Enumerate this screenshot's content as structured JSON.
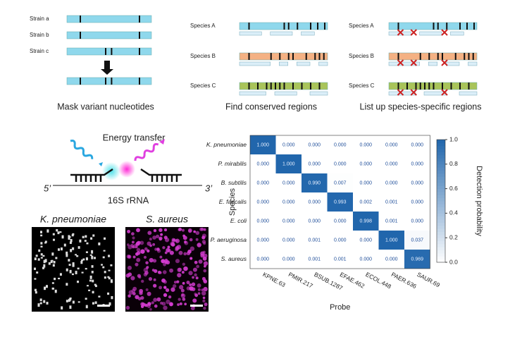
{
  "panels": {
    "mask": {
      "strains": [
        "Strain a",
        "Strain b",
        "Strain c"
      ],
      "caption": "Mask variant nucleotides"
    },
    "conserved": {
      "species": [
        "Species A",
        "Species B",
        "Species C"
      ],
      "caption": "Find conserved regions"
    },
    "specific": {
      "species": [
        "Species A",
        "Species B",
        "Species C"
      ],
      "caption": "List up species-specific regions"
    },
    "fret": {
      "title": "Energy transfer",
      "left_end": "5’",
      "right_end": "3’",
      "label": "16S rRNA"
    },
    "images": [
      "K. pneumoniae",
      "S. aureus"
    ]
  },
  "chart_data": {
    "type": "heatmap",
    "rows": [
      "K. pneumoniae",
      "P. mirabilis",
      "B. subtilis",
      "E. faecalis",
      "E. coli",
      "P. aeruginosa",
      "S. aureus"
    ],
    "categories": [
      "KPNE.63",
      "PMIR.217",
      "BSUB.1287",
      "EFAE.462",
      "ECOL.448",
      "PAER.636",
      "SAUR.69"
    ],
    "values": [
      [
        1,
        0,
        0,
        0,
        0,
        0,
        0
      ],
      [
        0,
        1,
        0,
        0,
        0,
        0,
        0
      ],
      [
        0,
        0,
        0.99,
        0.007,
        0,
        0,
        0
      ],
      [
        0,
        0,
        0,
        0.993,
        0.002,
        0.001,
        0
      ],
      [
        0,
        0,
        0,
        0,
        0.998,
        0.001,
        0
      ],
      [
        0,
        0,
        0.001,
        0,
        0,
        1,
        0.037
      ],
      [
        0,
        0,
        0.001,
        0.001,
        0,
        0,
        0.969
      ]
    ],
    "value_labels": [
      [
        "1.000",
        "0.000",
        "0.000",
        "0.000",
        "0.000",
        "0.000",
        "0.000"
      ],
      [
        "0.000",
        "1.000",
        "0.000",
        "0.000",
        "0.000",
        "0.000",
        "0.000"
      ],
      [
        "0.000",
        "0.000",
        "0.990",
        "0.007",
        "0.000",
        "0.000",
        "0.000"
      ],
      [
        "0.000",
        "0.000",
        "0.000",
        "0.993",
        "0.002",
        "0.001",
        "0.000"
      ],
      [
        "0.000",
        "0.000",
        "0.000",
        "0.000",
        "0.998",
        "0.001",
        "0.000"
      ],
      [
        "0.000",
        "0.000",
        "0.001",
        "0.000",
        "0.000",
        "1.000",
        "0.037"
      ],
      [
        "0.000",
        "0.000",
        "0.001",
        "0.001",
        "0.000",
        "0.000",
        "0.969"
      ]
    ],
    "xlabel": "Probe",
    "ylabel": "Species",
    "colorbar_label": "Detection probability",
    "zlim": [
      0,
      1
    ],
    "zticks": [
      {
        "value": 0,
        "label": "0.0"
      },
      0.2,
      0.4,
      0.6,
      0.8,
      {
        "value": 1,
        "label": "1.0"
      }
    ],
    "color": "#2166ac"
  }
}
